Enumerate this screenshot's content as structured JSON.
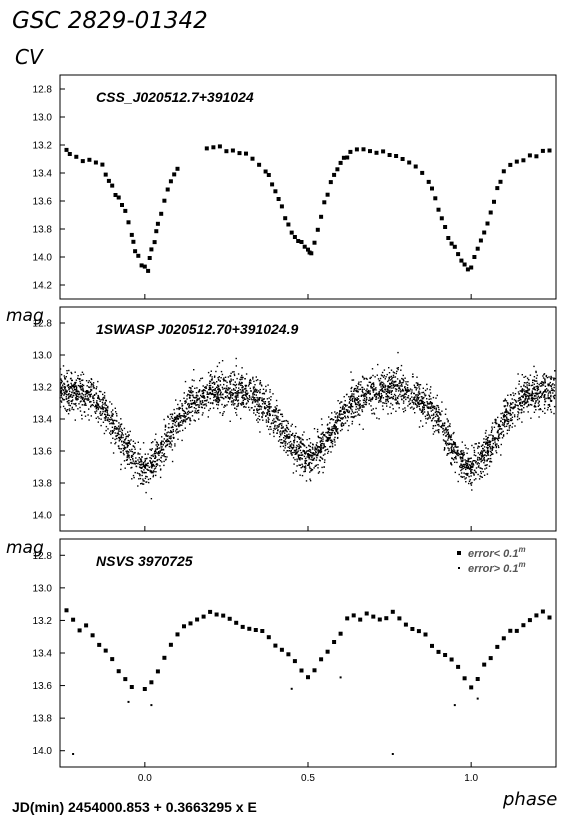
{
  "figure": {
    "star_name": "GSC 2829-01342",
    "type_label": "CV",
    "ylabel": "mag",
    "xlabel": "phase",
    "ephemeris": "JD(min) 2454000.853  + 0.3663295 x E"
  },
  "colors": {
    "points": "#000000",
    "frame": "#000000",
    "legend_text": "#555555"
  },
  "chart_data": [
    {
      "type": "scatter",
      "title": "CSS_J020512.7+391024",
      "xlim": [
        -0.26,
        1.26
      ],
      "ylim": [
        14.3,
        12.7
      ],
      "yticks": [
        "12.8",
        "13.0",
        "13.2",
        "13.4",
        "13.6",
        "13.8",
        "14.0",
        "14.2"
      ],
      "xticks": [
        "0.0",
        "0.5",
        "1.0"
      ],
      "model": {
        "base": 13.25,
        "primary_depth": 0.85,
        "secondary_depth": 0.72,
        "width": 0.075,
        "center_brightening": -0.06
      },
      "series": [
        {
          "marker": "square",
          "points": [
            [
              -0.24,
              13.23
            ],
            [
              -0.23,
              13.27
            ],
            [
              -0.21,
              13.28
            ],
            [
              -0.19,
              13.3
            ],
            [
              -0.17,
              13.3
            ],
            [
              -0.15,
              13.32
            ],
            [
              -0.13,
              13.35
            ],
            [
              -0.12,
              13.4
            ],
            [
              -0.11,
              13.45
            ],
            [
              -0.1,
              13.48
            ],
            [
              -0.09,
              13.55
            ],
            [
              -0.08,
              13.58
            ],
            [
              -0.07,
              13.62
            ],
            [
              -0.06,
              13.68
            ],
            [
              -0.05,
              13.75
            ],
            [
              -0.04,
              13.85
            ],
            [
              -0.035,
              13.9
            ],
            [
              -0.03,
              13.95
            ],
            [
              -0.02,
              13.98
            ],
            [
              -0.01,
              14.05
            ],
            [
              0.0,
              14.08
            ],
            [
              0.01,
              14.1
            ],
            [
              0.015,
              14.0
            ],
            [
              0.02,
              13.95
            ],
            [
              0.03,
              13.9
            ],
            [
              0.035,
              13.82
            ],
            [
              0.04,
              13.75
            ],
            [
              0.05,
              13.68
            ],
            [
              0.06,
              13.6
            ],
            [
              0.07,
              13.52
            ],
            [
              0.08,
              13.45
            ],
            [
              0.09,
              13.42
            ],
            [
              0.1,
              13.38
            ],
            [
              0.19,
              13.23
            ],
            [
              0.21,
              13.22
            ],
            [
              0.23,
              13.21
            ],
            [
              0.25,
              13.23
            ],
            [
              0.27,
              13.24
            ],
            [
              0.29,
              13.25
            ],
            [
              0.31,
              13.27
            ],
            [
              0.33,
              13.3
            ],
            [
              0.35,
              13.33
            ],
            [
              0.37,
              13.38
            ],
            [
              0.38,
              13.42
            ],
            [
              0.39,
              13.48
            ],
            [
              0.4,
              13.52
            ],
            [
              0.41,
              13.58
            ],
            [
              0.42,
              13.65
            ],
            [
              0.43,
              13.72
            ],
            [
              0.44,
              13.78
            ],
            [
              0.45,
              13.82
            ],
            [
              0.46,
              13.86
            ],
            [
              0.47,
              13.88
            ],
            [
              0.48,
              13.9
            ],
            [
              0.49,
              13.93
            ],
            [
              0.5,
              13.95
            ],
            [
              0.505,
              13.97
            ],
            [
              0.51,
              13.96
            ],
            [
              0.52,
              13.9
            ],
            [
              0.53,
              13.82
            ],
            [
              0.54,
              13.72
            ],
            [
              0.55,
              13.62
            ],
            [
              0.56,
              13.55
            ],
            [
              0.57,
              13.48
            ],
            [
              0.58,
              13.42
            ],
            [
              0.59,
              13.38
            ],
            [
              0.6,
              13.33
            ],
            [
              0.61,
              13.3
            ],
            [
              0.62,
              13.28
            ],
            [
              0.63,
              13.25
            ],
            [
              0.65,
              13.23
            ],
            [
              0.67,
              13.22
            ],
            [
              0.69,
              13.24
            ],
            [
              0.71,
              13.25
            ],
            [
              0.73,
              13.26
            ],
            [
              0.75,
              13.27
            ],
            [
              0.77,
              13.28
            ],
            [
              0.79,
              13.3
            ],
            [
              0.81,
              13.32
            ],
            [
              0.83,
              13.36
            ],
            [
              0.85,
              13.4
            ],
            [
              0.87,
              13.45
            ],
            [
              0.88,
              13.52
            ],
            [
              0.89,
              13.58
            ],
            [
              0.9,
              13.65
            ],
            [
              0.91,
              13.72
            ],
            [
              0.92,
              13.8
            ],
            [
              0.93,
              13.86
            ],
            [
              0.94,
              13.9
            ],
            [
              0.95,
              13.93
            ],
            [
              0.96,
              13.97
            ],
            [
              0.97,
              14.02
            ],
            [
              0.98,
              14.06
            ],
            [
              0.99,
              14.08
            ],
            [
              1.0,
              14.06
            ],
            [
              1.01,
              14.0
            ],
            [
              1.02,
              13.95
            ],
            [
              1.03,
              13.88
            ],
            [
              1.04,
              13.82
            ],
            [
              1.05,
              13.75
            ],
            [
              1.06,
              13.68
            ],
            [
              1.07,
              13.6
            ],
            [
              1.08,
              13.52
            ],
            [
              1.09,
              13.45
            ],
            [
              1.1,
              13.4
            ],
            [
              1.12,
              13.35
            ],
            [
              1.14,
              13.32
            ],
            [
              1.16,
              13.3
            ],
            [
              1.18,
              13.28
            ],
            [
              1.2,
              13.27
            ],
            [
              1.22,
              13.25
            ],
            [
              1.24,
              13.23
            ]
          ]
        }
      ]
    },
    {
      "type": "scatter",
      "title": "1SWASP J020512.70+391024.9",
      "xlim": [
        -0.26,
        1.26
      ],
      "ylim": [
        14.1,
        12.7
      ],
      "yticks": [
        "12.8",
        "13.0",
        "13.2",
        "13.4",
        "13.6",
        "13.8",
        "14.0"
      ],
      "xticks": [
        "0.0",
        "0.5",
        "1.0"
      ],
      "model": {
        "base": 13.22,
        "primary_depth": 0.48,
        "secondary_depth": 0.42,
        "width": 0.075,
        "center_brightening": 0.0,
        "scatter_sigma": 0.06
      },
      "series": [
        {
          "marker": "dot",
          "points": [
            [
              -0.2,
              13.15
            ],
            [
              -0.15,
              13.32
            ],
            [
              -0.1,
              13.38
            ],
            [
              -0.05,
              13.55
            ],
            [
              0.0,
              13.7
            ],
            [
              0.05,
              13.55
            ],
            [
              0.1,
              13.38
            ],
            [
              0.15,
              13.3
            ],
            [
              0.2,
              13.24
            ],
            [
              0.25,
              13.21
            ],
            [
              0.3,
              13.22
            ],
            [
              0.35,
              13.28
            ],
            [
              0.4,
              13.35
            ],
            [
              0.45,
              13.5
            ],
            [
              0.5,
              13.62
            ],
            [
              0.55,
              13.5
            ],
            [
              0.6,
              13.35
            ],
            [
              0.65,
              13.28
            ],
            [
              0.7,
              13.22
            ],
            [
              0.75,
              13.2
            ],
            [
              0.8,
              13.22
            ],
            [
              0.85,
              13.3
            ],
            [
              0.9,
              13.4
            ],
            [
              0.95,
              13.55
            ],
            [
              1.0,
              13.7
            ],
            [
              1.05,
              13.55
            ],
            [
              1.1,
              13.38
            ],
            [
              1.15,
              13.3
            ],
            [
              1.2,
              13.24
            ],
            [
              1.25,
              13.22
            ]
          ]
        }
      ]
    },
    {
      "type": "scatter",
      "title": "NSVS 3970725",
      "xlim": [
        -0.26,
        1.26
      ],
      "ylim": [
        14.1,
        12.7
      ],
      "yticks": [
        "12.8",
        "13.0",
        "13.2",
        "13.4",
        "13.6",
        "13.8",
        "14.0"
      ],
      "xticks": [
        "0.0",
        "0.5",
        "1.0"
      ],
      "legend": {
        "position": "top-right",
        "entries": [
          {
            "marker": "square",
            "label": "error< 0.1",
            "superscript": "m"
          },
          {
            "marker": "dot",
            "label": "error> 0.1",
            "superscript": "m"
          }
        ]
      },
      "model": {
        "base": 13.18,
        "primary_depth": 0.45,
        "secondary_depth": 0.4,
        "width": 0.08,
        "center_brightening": 0.0
      },
      "series": [
        {
          "marker": "square",
          "label": "error< 0.1",
          "points": [
            [
              -0.24,
              13.15
            ],
            [
              -0.22,
              13.2
            ],
            [
              -0.2,
              13.25
            ],
            [
              -0.18,
              13.22
            ],
            [
              -0.16,
              13.28
            ],
            [
              -0.14,
              13.35
            ],
            [
              -0.12,
              13.4
            ],
            [
              -0.1,
              13.45
            ],
            [
              -0.08,
              13.5
            ],
            [
              -0.06,
              13.55
            ],
            [
              -0.04,
              13.6
            ],
            [
              0.0,
              13.62
            ],
            [
              0.02,
              13.58
            ],
            [
              0.04,
              13.5
            ],
            [
              0.06,
              13.42
            ],
            [
              0.08,
              13.35
            ],
            [
              0.1,
              13.3
            ],
            [
              0.12,
              13.25
            ],
            [
              0.14,
              13.22
            ],
            [
              0.16,
              13.2
            ],
            [
              0.18,
              13.18
            ],
            [
              0.2,
              13.16
            ],
            [
              0.22,
              13.15
            ],
            [
              0.24,
              13.18
            ],
            [
              0.26,
              13.2
            ],
            [
              0.28,
              13.22
            ],
            [
              0.3,
              13.24
            ],
            [
              0.32,
              13.25
            ],
            [
              0.34,
              13.27
            ],
            [
              0.36,
              13.28
            ],
            [
              0.38,
              13.3
            ],
            [
              0.4,
              13.35
            ],
            [
              0.42,
              13.38
            ],
            [
              0.44,
              13.42
            ],
            [
              0.46,
              13.45
            ],
            [
              0.48,
              13.5
            ],
            [
              0.5,
              13.55
            ],
            [
              0.52,
              13.5
            ],
            [
              0.54,
              13.45
            ],
            [
              0.56,
              13.38
            ],
            [
              0.58,
              13.32
            ],
            [
              0.6,
              13.28
            ],
            [
              0.62,
              13.2
            ],
            [
              0.64,
              13.17
            ],
            [
              0.66,
              13.18
            ],
            [
              0.68,
              13.15
            ],
            [
              0.7,
              13.17
            ],
            [
              0.72,
              13.18
            ],
            [
              0.74,
              13.2
            ],
            [
              0.76,
              13.16
            ],
            [
              0.78,
              13.2
            ],
            [
              0.8,
              13.22
            ],
            [
              0.82,
              13.25
            ],
            [
              0.84,
              13.28
            ],
            [
              0.86,
              13.3
            ],
            [
              0.88,
              13.35
            ],
            [
              0.9,
              13.38
            ],
            [
              0.92,
              13.42
            ],
            [
              0.94,
              13.45
            ],
            [
              0.96,
              13.5
            ],
            [
              0.98,
              13.55
            ],
            [
              1.0,
              13.62
            ],
            [
              1.02,
              13.55
            ],
            [
              1.04,
              13.48
            ],
            [
              1.06,
              13.42
            ],
            [
              1.08,
              13.35
            ],
            [
              1.1,
              13.3
            ],
            [
              1.12,
              13.27
            ],
            [
              1.14,
              13.25
            ],
            [
              1.16,
              13.22
            ],
            [
              1.18,
              13.2
            ],
            [
              1.2,
              13.17
            ],
            [
              1.22,
              13.15
            ],
            [
              1.24,
              13.18
            ]
          ]
        },
        {
          "marker": "dot",
          "label": "error> 0.1",
          "points": [
            [
              -0.22,
              14.02
            ],
            [
              -0.05,
              13.7
            ],
            [
              0.02,
              13.72
            ],
            [
              0.45,
              13.62
            ],
            [
              0.6,
              13.55
            ],
            [
              0.76,
              14.02
            ],
            [
              0.95,
              13.72
            ],
            [
              1.02,
              13.68
            ]
          ]
        }
      ]
    }
  ]
}
